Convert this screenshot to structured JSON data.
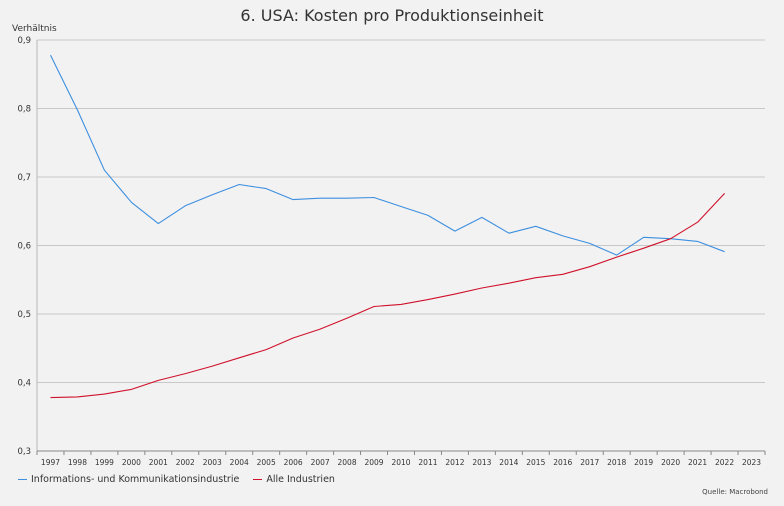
{
  "chart_data": {
    "type": "line",
    "title": "6. USA: Kosten pro Produktionseinheit",
    "ylabel": "Verhältnis",
    "xlabel": "",
    "ylim": [
      0.3,
      0.9
    ],
    "y_ticks": [
      "0,3",
      "0,4",
      "0,5",
      "0,6",
      "0,7",
      "0,8",
      "0,9"
    ],
    "y_tick_values": [
      0.3,
      0.4,
      0.5,
      0.6,
      0.7,
      0.8,
      0.9
    ],
    "x_ticks": [
      "1997",
      "1998",
      "1999",
      "2000",
      "2001",
      "2002",
      "2003",
      "2004",
      "2005",
      "2006",
      "2007",
      "2008",
      "2009",
      "2010",
      "2011",
      "2012",
      "2013",
      "2014",
      "2015",
      "2016",
      "2017",
      "2018",
      "2019",
      "2020",
      "2021",
      "2022",
      "2023"
    ],
    "grid": true,
    "legend_position": "bottom-left",
    "series": [
      {
        "name": "Informations- und Kommunikationsindustrie",
        "color": "#3d8fe0",
        "x": [
          1997,
          1998,
          1999,
          2000,
          2001,
          2002,
          2003,
          2004,
          2005,
          2006,
          2007,
          2008,
          2009,
          2010,
          2011,
          2012,
          2013,
          2014,
          2015,
          2016,
          2017,
          2018,
          2019,
          2020,
          2021,
          2022
        ],
        "values": [
          0.878,
          0.798,
          0.71,
          0.663,
          0.632,
          0.658,
          0.674,
          0.689,
          0.683,
          0.667,
          0.669,
          0.669,
          0.67,
          0.657,
          0.644,
          0.621,
          0.641,
          0.618,
          0.628,
          0.614,
          0.603,
          0.586,
          0.612,
          0.61,
          0.606,
          0.591
        ]
      },
      {
        "name": "Alle Industrien",
        "color": "#d0112b",
        "x": [
          1997,
          1998,
          1999,
          2000,
          2001,
          2002,
          2003,
          2004,
          2005,
          2006,
          2007,
          2008,
          2009,
          2010,
          2011,
          2012,
          2013,
          2014,
          2015,
          2016,
          2017,
          2018,
          2019,
          2020,
          2021,
          2022
        ],
        "values": [
          0.378,
          0.379,
          0.383,
          0.39,
          0.403,
          0.413,
          0.424,
          0.436,
          0.448,
          0.465,
          0.478,
          0.494,
          0.511,
          0.514,
          0.521,
          0.529,
          0.538,
          0.545,
          0.553,
          0.558,
          0.569,
          0.583,
          0.596,
          0.61,
          0.634,
          0.676
        ]
      }
    ],
    "source": "Quelle: Macrobond"
  }
}
